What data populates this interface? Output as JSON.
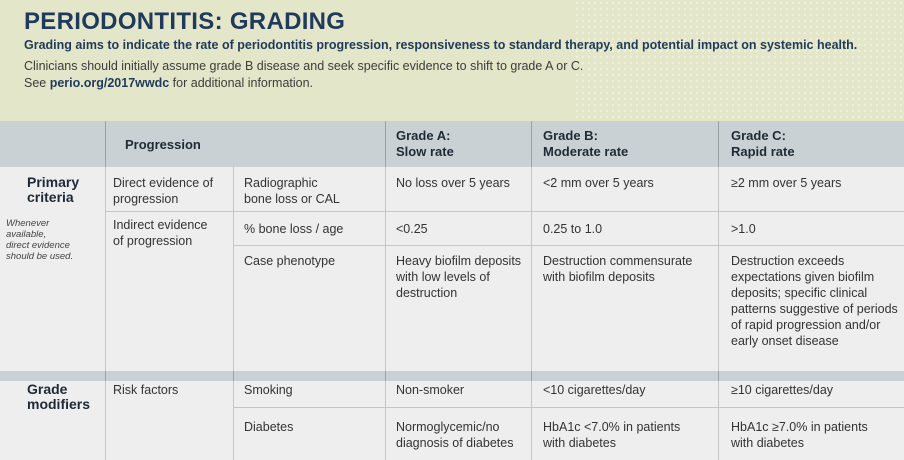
{
  "header": {
    "title": "PERIODONTITIS: GRADING",
    "subtitle": "Grading aims to indicate the rate of periodontitis progression, responsiveness to standard therapy, and potential impact on systemic health.",
    "note1": "Clinicians should initially assume grade B disease and seek specific evidence to shift to grade A or C.",
    "note2_prefix": "See ",
    "note2_link": "perio.org/2017wwdc",
    "note2_suffix": " for additional information."
  },
  "table": {
    "headers": {
      "progression": "Progression",
      "grade_a_line1": "Grade A:",
      "grade_a_line2": "Slow rate",
      "grade_b_line1": "Grade B:",
      "grade_b_line2": "Moderate rate",
      "grade_c_line1": "Grade C:",
      "grade_c_line2": "Rapid rate"
    },
    "primary": {
      "label_line1": "Primary",
      "label_line2": "criteria",
      "note_line1": "Whenever",
      "note_line2": "available,",
      "note_line3": "direct evidence",
      "note_line4": "should be used.",
      "direct_line1": "Direct evidence of",
      "direct_line2": "progression",
      "indirect_line1": "Indirect evidence",
      "indirect_line2": "of progression",
      "rows": [
        {
          "measure_line1": "Radiographic",
          "measure_line2": "bone loss or CAL",
          "a": "No loss over 5 years",
          "b": "<2 mm over 5 years",
          "c": "≥2 mm over 5 years"
        },
        {
          "measure_line1": "% bone loss / age",
          "a": "<0.25",
          "b": "0.25 to 1.0",
          "c": ">1.0"
        },
        {
          "measure_line1": "Case phenotype",
          "a_lines": [
            "Heavy biofilm deposits",
            "with low levels of",
            "destruction"
          ],
          "b_lines": [
            "Destruction commensurate",
            "with biofilm deposits"
          ],
          "c_lines": [
            "Destruction exceeds",
            "expectations given biofilm",
            "deposits; specific clinical",
            "patterns suggestive of periods",
            "of rapid progression and/or",
            "early onset disease"
          ]
        }
      ]
    },
    "modifiers": {
      "label_line1": "Grade",
      "label_line2": "modifiers",
      "risk_factors": "Risk factors",
      "rows": [
        {
          "measure": "Smoking",
          "a": "Non-smoker",
          "b": "<10 cigarettes/day",
          "c": "≥10 cigarettes/day"
        },
        {
          "measure": "Diabetes",
          "a_lines": [
            "Normoglycemic/no",
            "diagnosis of diabetes"
          ],
          "b_lines": [
            "HbA1c <7.0% in patients",
            "with diabetes"
          ],
          "c_lines": [
            "HbA1c ≥7.0% in patients",
            "with diabetes"
          ]
        }
      ]
    }
  }
}
